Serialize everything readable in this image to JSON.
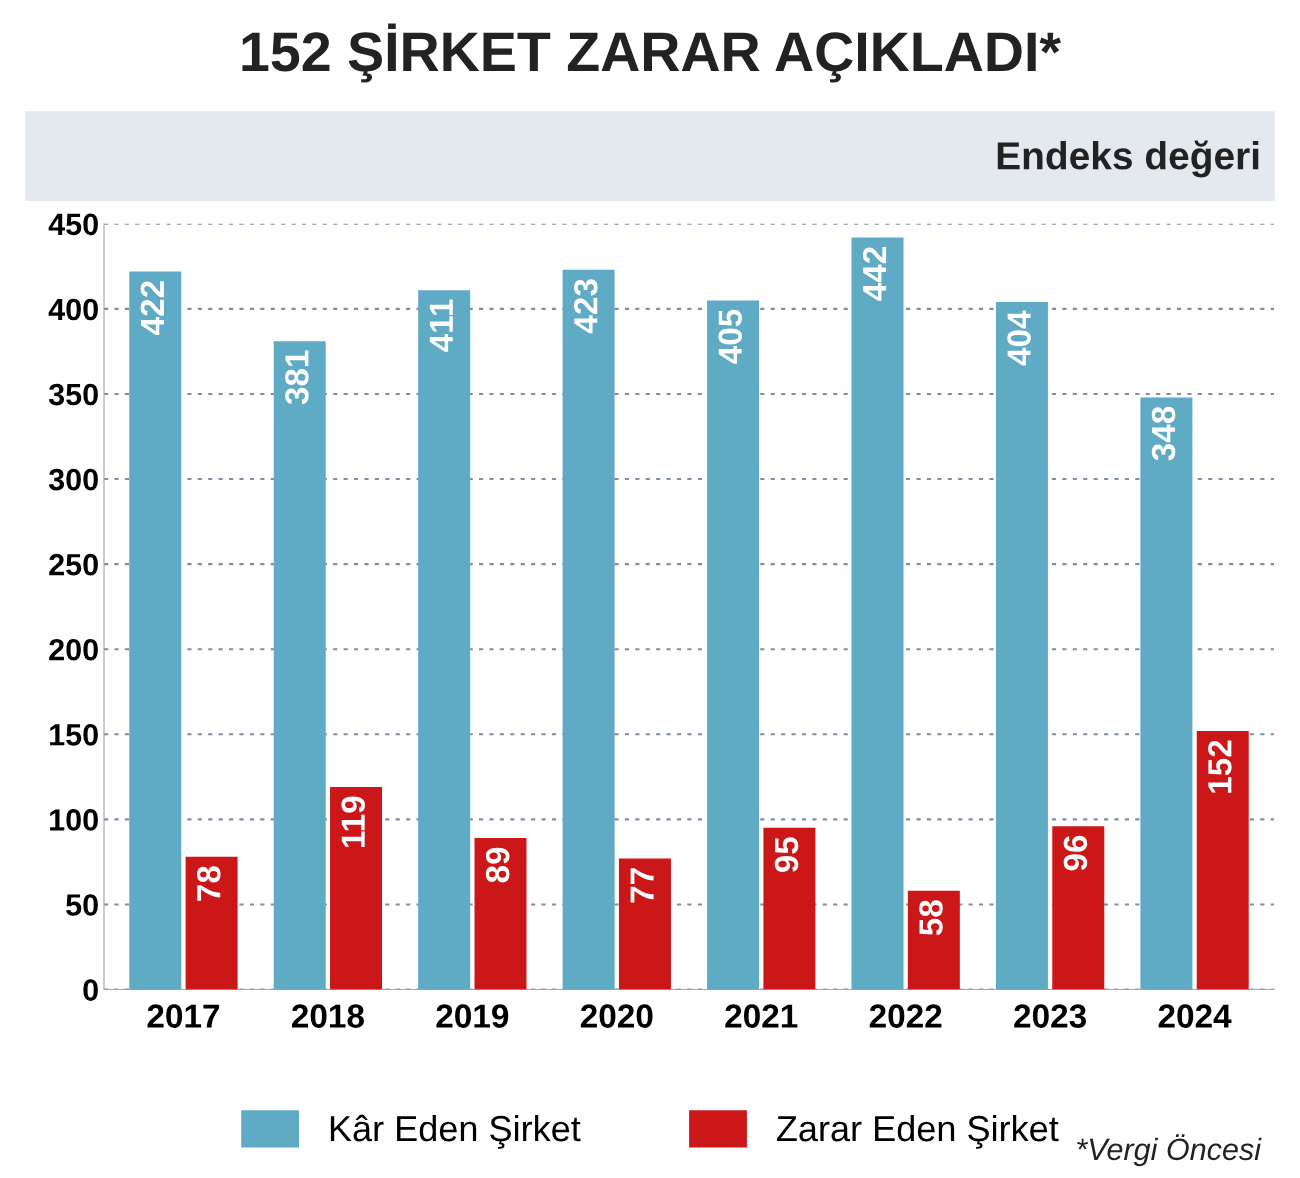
{
  "chart_data": {
    "type": "bar",
    "title": "152 ŞİRKET ZARAR AÇIKLADI*",
    "subtitle": "Endeks değeri",
    "categories": [
      "2017",
      "2018",
      "2019",
      "2020",
      "2021",
      "2022",
      "2023",
      "2024"
    ],
    "series": [
      {
        "name": "Kâr Eden Şirket",
        "color": "#5faac4",
        "values": [
          422,
          381,
          411,
          423,
          405,
          442,
          404,
          348
        ]
      },
      {
        "name": "Zarar Eden Şirket",
        "color": "#cc1719",
        "values": [
          78,
          119,
          89,
          77,
          95,
          58,
          96,
          152
        ]
      }
    ],
    "ylim": [
      0,
      450
    ],
    "yticks": [
      0,
      50,
      100,
      150,
      200,
      250,
      300,
      350,
      400,
      450
    ],
    "grid": "y",
    "legend": "bottom",
    "data_labels": true,
    "annotations": [
      "*Vergi Öncesi"
    ]
  }
}
